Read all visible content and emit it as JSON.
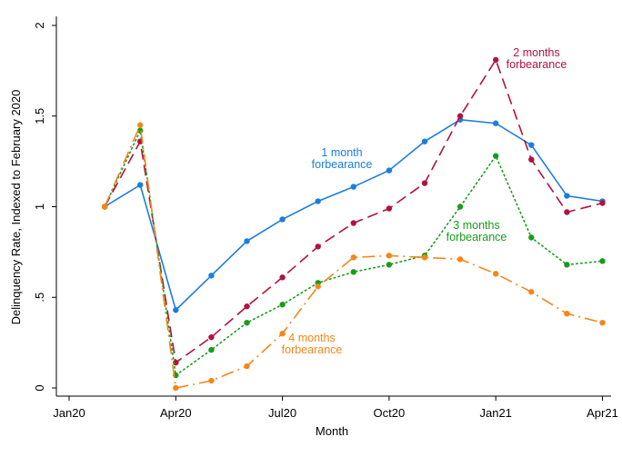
{
  "chart_data": {
    "type": "line",
    "xlabel": "Month",
    "ylabel": "Delinquency Rate, Indexed to February 2020",
    "x_ticks": [
      "Jan20",
      "Apr20",
      "Jul20",
      "Oct20",
      "Jan21",
      "Apr21"
    ],
    "y_ticks": [
      "0",
      ".5",
      "1",
      "1.5",
      "2"
    ],
    "y_tick_values": [
      0,
      0.5,
      1,
      1.5,
      2
    ],
    "ylim": [
      0,
      2
    ],
    "x_months": [
      "Feb20",
      "Mar20",
      "Apr20",
      "May20",
      "Jun20",
      "Jul20",
      "Aug20",
      "Sep20",
      "Oct20",
      "Nov20",
      "Dec20",
      "Jan21",
      "Feb21",
      "Mar21",
      "Apr21"
    ],
    "x_tick_months": [
      "Jan20",
      "Apr20",
      "Jul20",
      "Oct20",
      "Jan21",
      "Apr21"
    ],
    "grid": false,
    "series": [
      {
        "key": "one_month",
        "annotation": [
          "1 month",
          "forbearance"
        ],
        "color": "#1a7ee0",
        "line_style": "solid",
        "values": [
          1.0,
          1.12,
          0.43,
          0.62,
          0.81,
          0.93,
          1.03,
          1.11,
          1.2,
          1.36,
          1.48,
          1.46,
          1.34,
          1.06,
          1.03
        ]
      },
      {
        "key": "two_months",
        "annotation": [
          "2 months",
          "forbearance"
        ],
        "color": "#b3123e",
        "line_style": "long-dash",
        "values": [
          1.0,
          1.36,
          0.14,
          0.28,
          0.45,
          0.61,
          0.78,
          0.91,
          0.99,
          1.13,
          1.5,
          1.81,
          1.26,
          0.97,
          1.02
        ]
      },
      {
        "key": "three_months",
        "annotation": [
          "3 months",
          "forbearance"
        ],
        "color": "#179c1b",
        "line_style": "dotted",
        "values": [
          1.0,
          1.42,
          0.07,
          0.21,
          0.36,
          0.46,
          0.58,
          0.64,
          0.68,
          0.73,
          1.0,
          1.28,
          0.83,
          0.68,
          0.7
        ]
      },
      {
        "key": "four_months",
        "annotation": [
          "4 months",
          "forbearance"
        ],
        "color": "#f58718",
        "line_style": "dash-dot",
        "values": [
          1.0,
          1.45,
          0.0,
          0.04,
          0.12,
          0.3,
          0.56,
          0.72,
          0.73,
          0.72,
          0.71,
          0.63,
          0.53,
          0.41,
          0.36
        ]
      }
    ]
  }
}
